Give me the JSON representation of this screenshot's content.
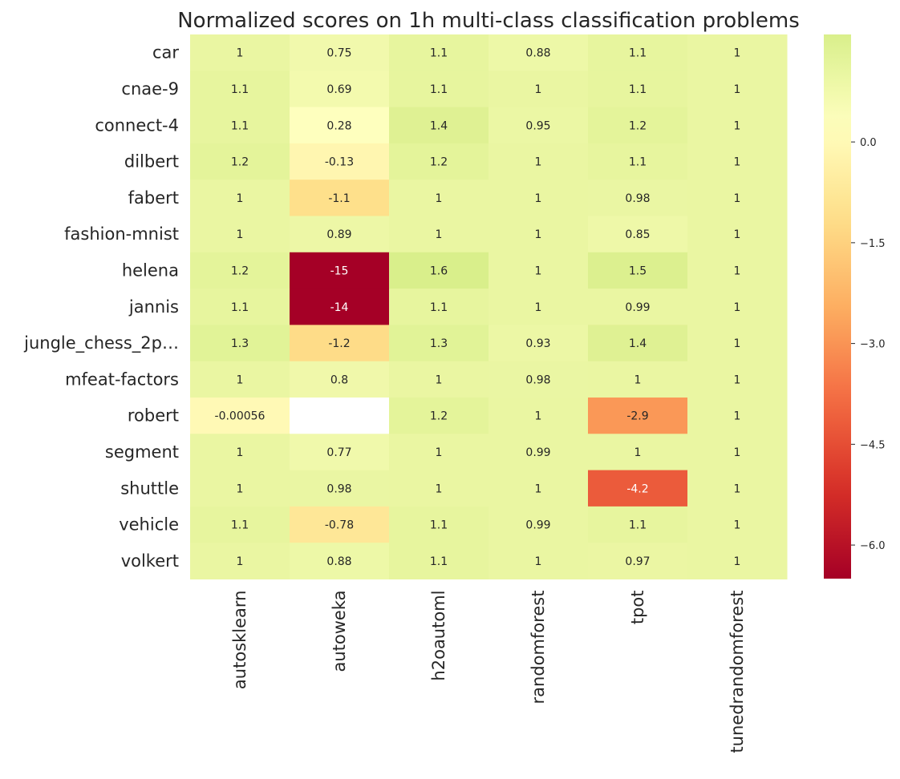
{
  "chart_data": {
    "type": "heatmap",
    "title": "Normalized scores on 1h multi-class classification problems",
    "xlabel": "",
    "ylabel": "",
    "columns": [
      "autosklearn",
      "autoweka",
      "h2oautoml",
      "randomforest",
      "tpot",
      "tunedrandomforest"
    ],
    "rows": [
      "car",
      "cnae-9",
      "connect-4",
      "dilbert",
      "fabert",
      "fashion-mnist",
      "helena",
      "jannis",
      "jungle_chess_2p…",
      "mfeat-factors",
      "robert",
      "segment",
      "shuttle",
      "vehicle",
      "volkert"
    ],
    "values": [
      [
        1.0,
        0.75,
        1.1,
        0.88,
        1.1,
        1.0
      ],
      [
        1.1,
        0.69,
        1.1,
        1.0,
        1.1,
        1.0
      ],
      [
        1.1,
        0.28,
        1.4,
        0.95,
        1.2,
        1.0
      ],
      [
        1.2,
        -0.13,
        1.2,
        1.0,
        1.1,
        1.0
      ],
      [
        1.0,
        -1.1,
        1.0,
        1.0,
        0.98,
        1.0
      ],
      [
        1.0,
        0.89,
        1.0,
        1.0,
        0.85,
        1.0
      ],
      [
        1.2,
        -15,
        1.6,
        1.0,
        1.5,
        1.0
      ],
      [
        1.1,
        -14,
        1.1,
        1.0,
        0.99,
        1.0
      ],
      [
        1.3,
        -1.2,
        1.3,
        0.93,
        1.4,
        1.0
      ],
      [
        1.0,
        0.8,
        1.0,
        0.98,
        1.0,
        1.0
      ],
      [
        -0.00056,
        null,
        1.2,
        1.0,
        -2.9,
        1.0
      ],
      [
        1.0,
        0.77,
        1.0,
        0.99,
        1.0,
        1.0
      ],
      [
        1.0,
        0.98,
        1.0,
        1.0,
        -4.2,
        1.0
      ],
      [
        1.1,
        -0.78,
        1.1,
        0.99,
        1.1,
        1.0
      ],
      [
        1.0,
        0.88,
        1.1,
        1.0,
        0.97,
        1.0
      ]
    ],
    "annotations": [
      [
        "1",
        "0.75",
        "1.1",
        "0.88",
        "1.1",
        "1"
      ],
      [
        "1.1",
        "0.69",
        "1.1",
        "1",
        "1.1",
        "1"
      ],
      [
        "1.1",
        "0.28",
        "1.4",
        "0.95",
        "1.2",
        "1"
      ],
      [
        "1.2",
        "-0.13",
        "1.2",
        "1",
        "1.1",
        "1"
      ],
      [
        "1",
        "-1.1",
        "1",
        "1",
        "0.98",
        "1"
      ],
      [
        "1",
        "0.89",
        "1",
        "1",
        "0.85",
        "1"
      ],
      [
        "1.2",
        "-15",
        "1.6",
        "1",
        "1.5",
        "1"
      ],
      [
        "1.1",
        "-14",
        "1.1",
        "1",
        "0.99",
        "1"
      ],
      [
        "1.3",
        "-1.2",
        "1.3",
        "0.93",
        "1.4",
        "1"
      ],
      [
        "1",
        "0.8",
        "1",
        "0.98",
        "1",
        "1"
      ],
      [
        "-0.00056",
        "",
        "1.2",
        "1",
        "-2.9",
        "1"
      ],
      [
        "1",
        "0.77",
        "1",
        "0.99",
        "1",
        "1"
      ],
      [
        "1",
        "0.98",
        "1",
        "1",
        "-4.2",
        "1"
      ],
      [
        "1.1",
        "-0.78",
        "1.1",
        "0.99",
        "1.1",
        "1"
      ],
      [
        "1",
        "0.88",
        "1.1",
        "1",
        "0.97",
        "1"
      ]
    ],
    "colormap": "RdYlGn",
    "vmin": -6.5,
    "vmax": 1.6,
    "colorbar_ticks": [
      0.0,
      -1.5,
      -3.0,
      -4.5,
      -6.0
    ],
    "colorbar_tick_labels": [
      "0.0",
      "−1.5",
      "−3.0",
      "−4.5",
      "−6.0"
    ],
    "grid": false
  }
}
